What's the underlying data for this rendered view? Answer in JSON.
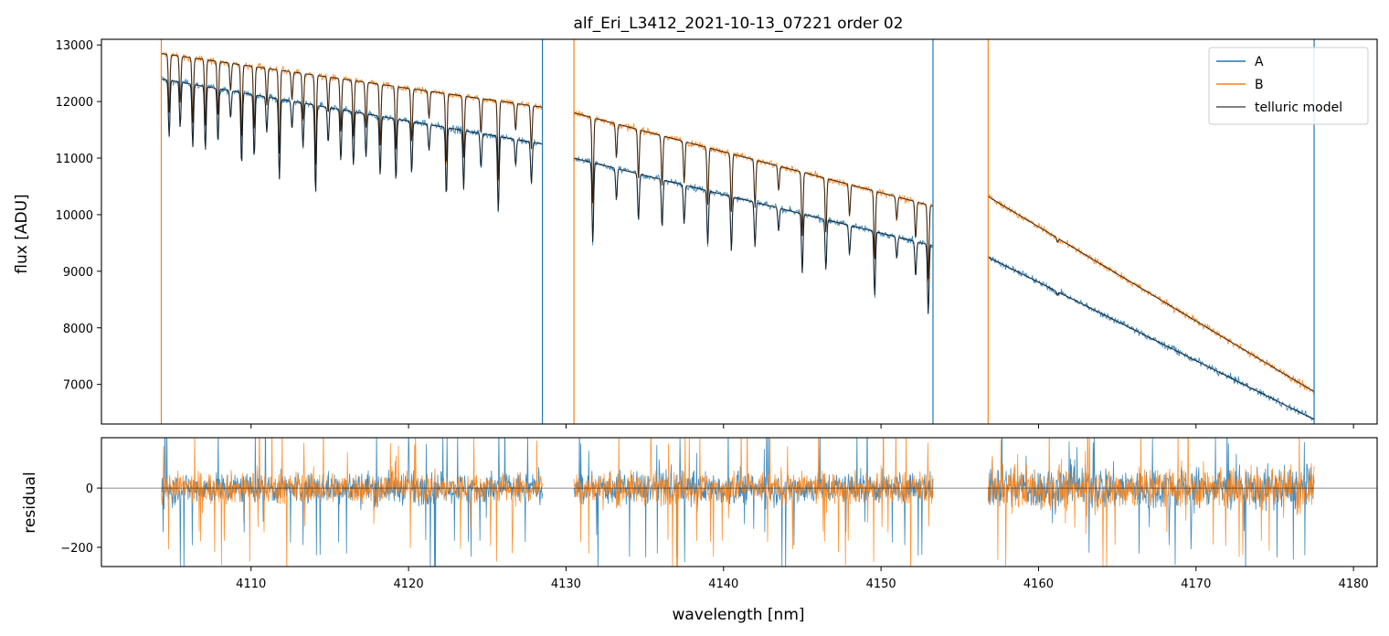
{
  "chart_data": [
    {
      "type": "line",
      "title": "alf_Eri_L3412_2021-10-13_07221  order 02",
      "ylabel": "flux [ADU]",
      "xlabel": "",
      "xlim": [
        4100.5,
        4181.5
      ],
      "ylim": [
        6300,
        13100
      ],
      "yticks": [
        7000,
        8000,
        9000,
        10000,
        11000,
        12000,
        13000
      ],
      "ytick_labels": [
        "7000",
        "8000",
        "9000",
        "10000",
        "11000",
        "12000",
        "13000"
      ],
      "xticks": [
        4110,
        4120,
        4130,
        4140,
        4150,
        4160,
        4170,
        4180
      ],
      "xtick_labels_shown": false,
      "grid": false,
      "legend": {
        "position": "top-right",
        "entries": [
          {
            "label": "A",
            "color": "#1f77b4"
          },
          {
            "label": "B",
            "color": "#ff7f0e"
          },
          {
            "label": "telluric model",
            "color": "#555555"
          }
        ]
      },
      "segments": [
        {
          "x": [
            4104.3,
            4128.5
          ],
          "A": [
            12400,
            11250
          ],
          "B": [
            12850,
            11900
          ]
        },
        {
          "x": [
            4130.5,
            4153.3
          ],
          "A": [
            11000,
            9450
          ],
          "B": [
            11800,
            10150
          ]
        },
        {
          "x": [
            4156.8,
            4177.5
          ],
          "A": [
            9250,
            6380
          ],
          "B": [
            10320,
            6870
          ]
        }
      ],
      "absorption_lines_x": [
        4104.8,
        4105.5,
        4106.3,
        4107.1,
        4107.9,
        4108.7,
        4109.4,
        4110.2,
        4111.0,
        4111.8,
        4112.6,
        4113.3,
        4114.1,
        4114.9,
        4115.7,
        4116.5,
        4117.3,
        4118.2,
        4119.2,
        4120.2,
        4121.3,
        4122.4,
        4123.5,
        4124.6,
        4125.7,
        4126.8,
        4127.8,
        4131.7,
        4133.2,
        4134.6,
        4136.1,
        4137.5,
        4139.0,
        4140.5,
        4142.0,
        4143.5,
        4145.0,
        4146.5,
        4148.0,
        4149.6,
        4151.0,
        4152.2,
        4153.0,
        4161.2
      ],
      "series": [
        {
          "name": "A",
          "color": "#1f77b4"
        },
        {
          "name": "B",
          "color": "#ff7f0e"
        },
        {
          "name": "telluric model",
          "color": "#000000"
        }
      ]
    },
    {
      "type": "line",
      "title": "",
      "ylabel": "residual",
      "xlabel": "wavelength [nm]",
      "xlim": [
        4100.5,
        4181.5
      ],
      "ylim": [
        -265,
        170
      ],
      "yticks": [
        -200,
        0
      ],
      "ytick_labels": [
        "−200",
        "0"
      ],
      "xticks": [
        4110,
        4120,
        4130,
        4140,
        4150,
        4160,
        4170,
        4180
      ],
      "xtick_labels": [
        "4110",
        "4120",
        "4130",
        "4140",
        "4150",
        "4160",
        "4170",
        "4180"
      ],
      "zero_line": 0,
      "noise_amplitude": {
        "first_two_segments": 70,
        "third_segment": 95
      },
      "series": [
        {
          "name": "A",
          "color": "#1f77b4"
        },
        {
          "name": "B",
          "color": "#ff7f0e"
        }
      ]
    }
  ]
}
